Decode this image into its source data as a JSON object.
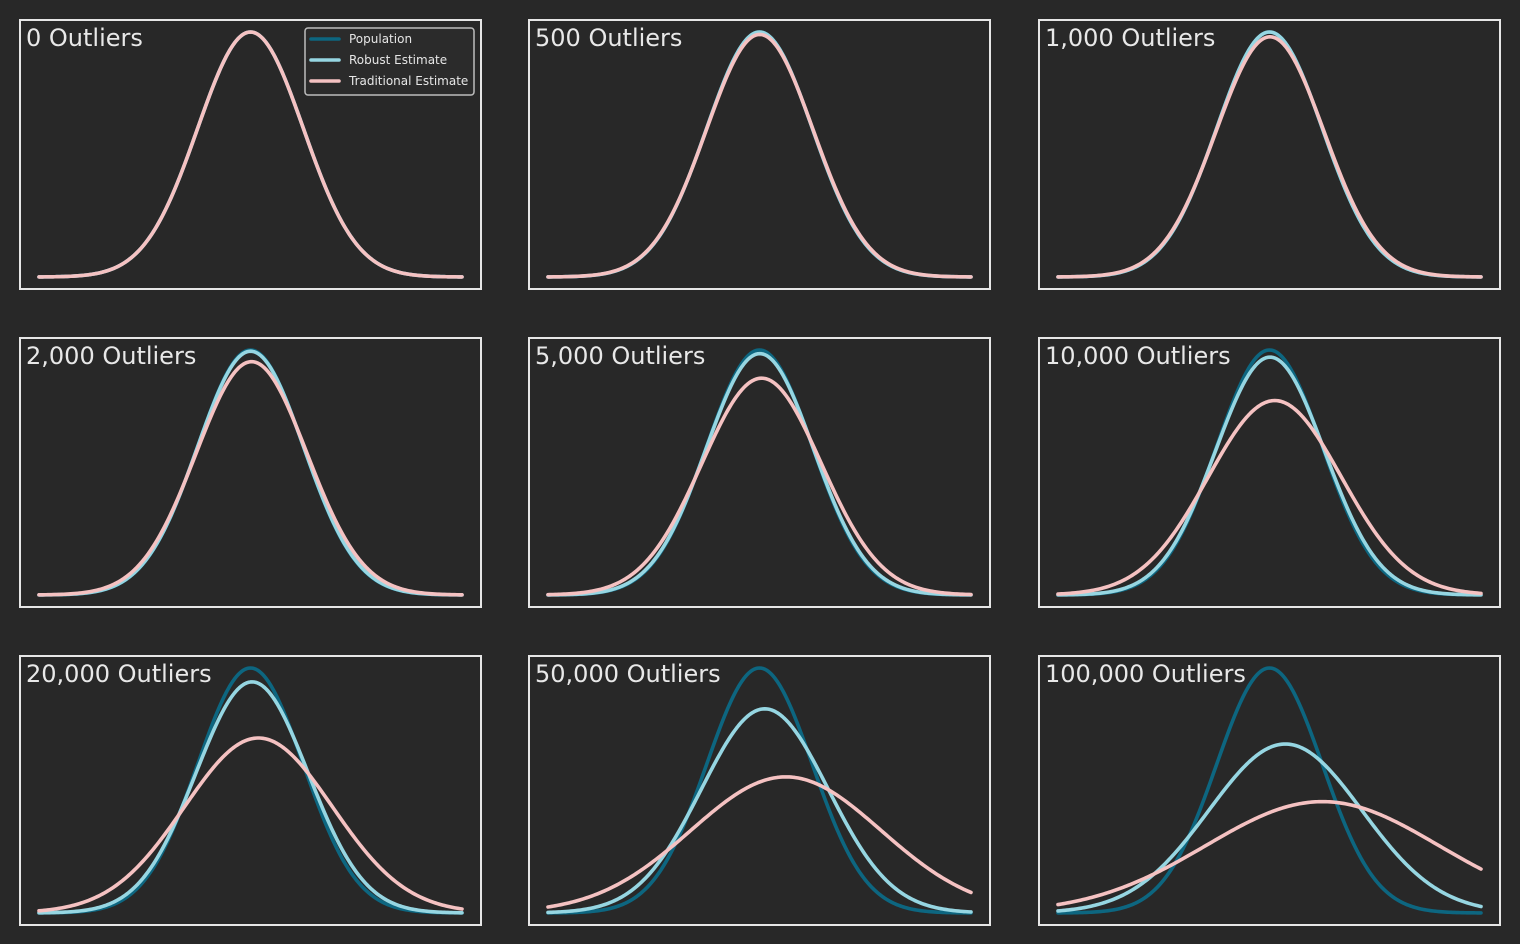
{
  "colors": {
    "background": "#282828",
    "frame": "#e6e6e6",
    "population": "#0d6680",
    "robust": "#96d6e2",
    "traditional": "#f5c2c2"
  },
  "chart_data": [
    {
      "type": "line",
      "title": "0 Outliers",
      "x": "normal pdf",
      "xlim": [
        -4,
        4
      ],
      "series": [
        {
          "name": "Population",
          "mu": 0,
          "sigma": 1
        },
        {
          "name": "Robust Estimate",
          "mu": 0,
          "sigma": 1
        },
        {
          "name": "Traditional Estimate",
          "mu": 0,
          "sigma": 1
        }
      ]
    },
    {
      "type": "line",
      "title": "500 Outliers",
      "xlim": [
        -4,
        4
      ],
      "series": [
        {
          "name": "Population",
          "mu": 0,
          "sigma": 1
        },
        {
          "name": "Robust Estimate",
          "mu": 0,
          "sigma": 1.0
        },
        {
          "name": "Traditional Estimate",
          "mu": 0.005,
          "sigma": 1.01
        }
      ]
    },
    {
      "type": "line",
      "title": "1,000 Outliers",
      "xlim": [
        -4,
        4
      ],
      "series": [
        {
          "name": "Population",
          "mu": 0,
          "sigma": 1
        },
        {
          "name": "Robust Estimate",
          "mu": 0,
          "sigma": 1.0
        },
        {
          "name": "Traditional Estimate",
          "mu": 0.01,
          "sigma": 1.02
        }
      ]
    },
    {
      "type": "line",
      "title": "2,000 Outliers",
      "xlim": [
        -4,
        4
      ],
      "series": [
        {
          "name": "Population",
          "mu": 0,
          "sigma": 1
        },
        {
          "name": "Robust Estimate",
          "mu": 0.002,
          "sigma": 1.005
        },
        {
          "name": "Traditional Estimate",
          "mu": 0.02,
          "sigma": 1.05
        }
      ]
    },
    {
      "type": "line",
      "title": "5,000 Outliers",
      "xlim": [
        -4,
        4
      ],
      "series": [
        {
          "name": "Population",
          "mu": 0,
          "sigma": 1
        },
        {
          "name": "Robust Estimate",
          "mu": 0.005,
          "sigma": 1.015
        },
        {
          "name": "Traditional Estimate",
          "mu": 0.04,
          "sigma": 1.13
        }
      ]
    },
    {
      "type": "line",
      "title": "10,000 Outliers",
      "xlim": [
        -4,
        4
      ],
      "series": [
        {
          "name": "Population",
          "mu": 0,
          "sigma": 1
        },
        {
          "name": "Robust Estimate",
          "mu": 0.01,
          "sigma": 1.03
        },
        {
          "name": "Traditional Estimate",
          "mu": 0.1,
          "sigma": 1.26
        }
      ]
    },
    {
      "type": "line",
      "title": "20,000 Outliers",
      "xlim": [
        -4,
        4
      ],
      "series": [
        {
          "name": "Population",
          "mu": 0,
          "sigma": 1
        },
        {
          "name": "Robust Estimate",
          "mu": 0.03,
          "sigma": 1.06
        },
        {
          "name": "Traditional Estimate",
          "mu": 0.15,
          "sigma": 1.4
        }
      ]
    },
    {
      "type": "line",
      "title": "50,000 Outliers",
      "xlim": [
        -4,
        4
      ],
      "series": [
        {
          "name": "Population",
          "mu": 0,
          "sigma": 1
        },
        {
          "name": "Robust Estimate",
          "mu": 0.1,
          "sigma": 1.2
        },
        {
          "name": "Traditional Estimate",
          "mu": 0.5,
          "sigma": 1.8
        }
      ]
    },
    {
      "type": "line",
      "title": "100,000 Outliers",
      "xlim": [
        -4,
        4
      ],
      "series": [
        {
          "name": "Population",
          "mu": 0,
          "sigma": 1
        },
        {
          "name": "Robust Estimate",
          "mu": 0.3,
          "sigma": 1.45
        },
        {
          "name": "Traditional Estimate",
          "mu": 1.0,
          "sigma": 2.2
        }
      ]
    }
  ],
  "legend": {
    "placement": "top-right",
    "items": [
      "Population",
      "Robust Estimate",
      "Traditional Estimate"
    ]
  }
}
